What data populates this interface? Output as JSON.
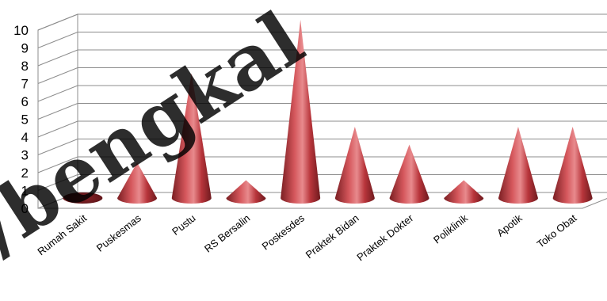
{
  "chart_data": {
    "type": "bar",
    "style": "3d-cone",
    "categories": [
      "Rumah Sakit",
      "Puskesmas",
      "Pustu",
      "RS Bersalin",
      "Poskesdes",
      "Praktek Bidan",
      "Praktek Dokter",
      "Poliklinik",
      "Apotik",
      "Toko Obat"
    ],
    "values": [
      0,
      2,
      7,
      1,
      10,
      4,
      3,
      1,
      4,
      4
    ],
    "ylim": [
      0,
      10
    ],
    "yticks": [
      0,
      1,
      2,
      3,
      4,
      5,
      6,
      7,
      8,
      9,
      10
    ],
    "grid": true,
    "legend": "none",
    "bar_color": "#c0393f",
    "watermark": "://bengkal"
  }
}
